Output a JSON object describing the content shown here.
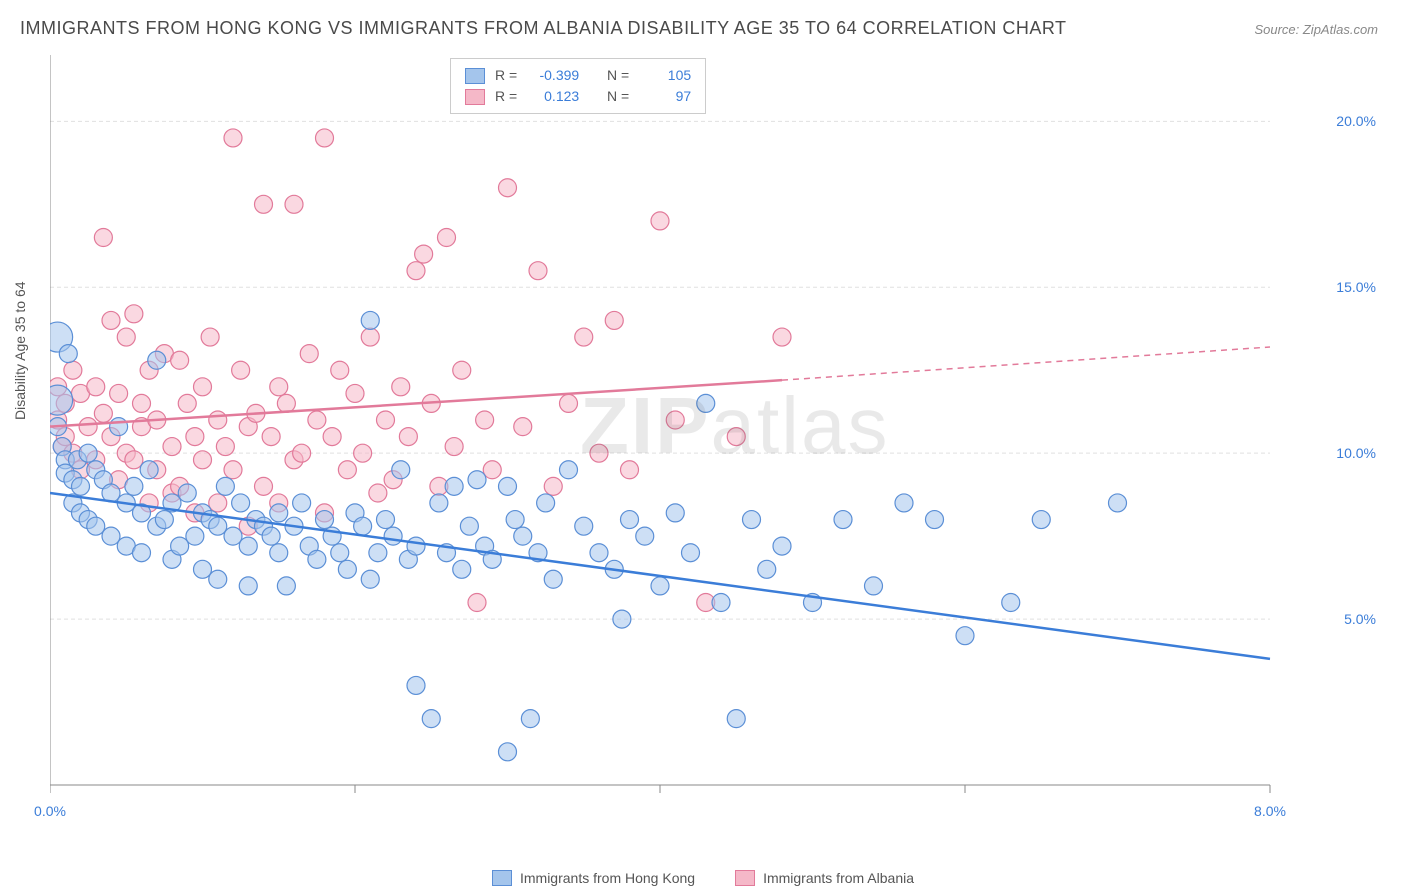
{
  "title": "IMMIGRANTS FROM HONG KONG VS IMMIGRANTS FROM ALBANIA DISABILITY AGE 35 TO 64 CORRELATION CHART",
  "source": "Source: ZipAtlas.com",
  "y_axis_label": "Disability Age 35 to 64",
  "watermark_bold": "ZIP",
  "watermark_light": "atlas",
  "chart": {
    "type": "scatter",
    "xlim": [
      0,
      8
    ],
    "ylim": [
      0,
      22
    ],
    "x_ticks": [
      0,
      2,
      4,
      6,
      8
    ],
    "x_tick_labels": {
      "0": "0.0%",
      "8": "8.0%"
    },
    "y_ticks": [
      5,
      10,
      15,
      20
    ],
    "y_tick_labels": {
      "5": "5.0%",
      "10": "10.0%",
      "15": "15.0%",
      "20": "20.0%"
    },
    "grid_color": "#e0e0e0",
    "axis_color": "#888888",
    "background_color": "#ffffff",
    "marker_radius": 9,
    "marker_radius_large": 15,
    "line_width": 2.5,
    "series": [
      {
        "name": "Immigrants from Hong Kong",
        "fill": "#a4c5ec",
        "stroke": "#5b8fd6",
        "line_color": "#3b7dd8",
        "R": "-0.399",
        "N": "105",
        "trend": {
          "x1": 0,
          "y1": 8.8,
          "x2": 8,
          "y2": 3.8,
          "dash_after": 8
        },
        "points": [
          [
            0.05,
            13.5,
            "L"
          ],
          [
            0.05,
            11.6,
            "L"
          ],
          [
            0.05,
            10.8
          ],
          [
            0.08,
            10.2
          ],
          [
            0.1,
            9.8
          ],
          [
            0.1,
            9.4
          ],
          [
            0.12,
            13.0
          ],
          [
            0.15,
            9.2
          ],
          [
            0.15,
            8.5
          ],
          [
            0.18,
            9.8
          ],
          [
            0.2,
            9.0
          ],
          [
            0.2,
            8.2
          ],
          [
            0.25,
            10.0
          ],
          [
            0.25,
            8.0
          ],
          [
            0.3,
            9.5
          ],
          [
            0.3,
            7.8
          ],
          [
            0.35,
            9.2
          ],
          [
            0.4,
            8.8
          ],
          [
            0.4,
            7.5
          ],
          [
            0.45,
            10.8
          ],
          [
            0.5,
            8.5
          ],
          [
            0.5,
            7.2
          ],
          [
            0.55,
            9.0
          ],
          [
            0.6,
            8.2
          ],
          [
            0.6,
            7.0
          ],
          [
            0.65,
            9.5
          ],
          [
            0.7,
            12.8
          ],
          [
            0.7,
            7.8
          ],
          [
            0.75,
            8.0
          ],
          [
            0.8,
            8.5
          ],
          [
            0.8,
            6.8
          ],
          [
            0.85,
            7.2
          ],
          [
            0.9,
            8.8
          ],
          [
            0.95,
            7.5
          ],
          [
            1.0,
            8.2
          ],
          [
            1.0,
            6.5
          ],
          [
            1.05,
            8.0
          ],
          [
            1.1,
            7.8
          ],
          [
            1.1,
            6.2
          ],
          [
            1.15,
            9.0
          ],
          [
            1.2,
            7.5
          ],
          [
            1.25,
            8.5
          ],
          [
            1.3,
            7.2
          ],
          [
            1.3,
            6.0
          ],
          [
            1.35,
            8.0
          ],
          [
            1.4,
            7.8
          ],
          [
            1.45,
            7.5
          ],
          [
            1.5,
            8.2
          ],
          [
            1.5,
            7.0
          ],
          [
            1.55,
            6.0
          ],
          [
            1.6,
            7.8
          ],
          [
            1.65,
            8.5
          ],
          [
            1.7,
            7.2
          ],
          [
            1.75,
            6.8
          ],
          [
            1.8,
            8.0
          ],
          [
            1.85,
            7.5
          ],
          [
            1.9,
            7.0
          ],
          [
            1.95,
            6.5
          ],
          [
            2.0,
            8.2
          ],
          [
            2.05,
            7.8
          ],
          [
            2.1,
            14.0
          ],
          [
            2.1,
            6.2
          ],
          [
            2.15,
            7.0
          ],
          [
            2.2,
            8.0
          ],
          [
            2.25,
            7.5
          ],
          [
            2.3,
            9.5
          ],
          [
            2.35,
            6.8
          ],
          [
            2.4,
            7.2
          ],
          [
            2.4,
            3.0
          ],
          [
            2.5,
            2.0
          ],
          [
            2.55,
            8.5
          ],
          [
            2.6,
            7.0
          ],
          [
            2.65,
            9.0
          ],
          [
            2.7,
            6.5
          ],
          [
            2.75,
            7.8
          ],
          [
            2.8,
            9.2
          ],
          [
            2.85,
            7.2
          ],
          [
            2.9,
            6.8
          ],
          [
            3.0,
            9.0
          ],
          [
            3.0,
            1.0
          ],
          [
            3.05,
            8.0
          ],
          [
            3.1,
            7.5
          ],
          [
            3.15,
            2.0
          ],
          [
            3.2,
            7.0
          ],
          [
            3.25,
            8.5
          ],
          [
            3.3,
            6.2
          ],
          [
            3.4,
            9.5
          ],
          [
            3.5,
            7.8
          ],
          [
            3.6,
            7.0
          ],
          [
            3.7,
            6.5
          ],
          [
            3.75,
            5.0
          ],
          [
            3.8,
            8.0
          ],
          [
            3.9,
            7.5
          ],
          [
            4.0,
            6.0
          ],
          [
            4.1,
            8.2
          ],
          [
            4.2,
            7.0
          ],
          [
            4.3,
            11.5
          ],
          [
            4.4,
            5.5
          ],
          [
            4.5,
            2.0
          ],
          [
            4.6,
            8.0
          ],
          [
            4.7,
            6.5
          ],
          [
            4.8,
            7.2
          ],
          [
            5.0,
            5.5
          ],
          [
            5.2,
            8.0
          ],
          [
            5.4,
            6.0
          ],
          [
            5.6,
            8.5
          ],
          [
            5.8,
            8.0
          ],
          [
            6.0,
            4.5
          ],
          [
            6.3,
            5.5
          ],
          [
            6.5,
            8.0
          ],
          [
            7.0,
            8.5
          ]
        ]
      },
      {
        "name": "Immigrants from Albania",
        "fill": "#f5b8c8",
        "stroke": "#e27a9a",
        "line_color": "#e27a9a",
        "R": "0.123",
        "N": "97",
        "trend": {
          "x1": 0,
          "y1": 10.8,
          "x2": 4.8,
          "y2": 12.2,
          "dash_after": 4.8,
          "x3": 8,
          "y3": 13.2
        },
        "points": [
          [
            0.05,
            12.0
          ],
          [
            0.05,
            11.0
          ],
          [
            0.08,
            10.2
          ],
          [
            0.1,
            11.5
          ],
          [
            0.1,
            10.5
          ],
          [
            0.15,
            12.5
          ],
          [
            0.15,
            10.0
          ],
          [
            0.2,
            11.8
          ],
          [
            0.2,
            9.5
          ],
          [
            0.25,
            10.8
          ],
          [
            0.3,
            12.0
          ],
          [
            0.3,
            9.8
          ],
          [
            0.35,
            11.2
          ],
          [
            0.35,
            16.5
          ],
          [
            0.4,
            10.5
          ],
          [
            0.4,
            14.0
          ],
          [
            0.45,
            11.8
          ],
          [
            0.45,
            9.2
          ],
          [
            0.5,
            13.5
          ],
          [
            0.5,
            10.0
          ],
          [
            0.55,
            14.2
          ],
          [
            0.55,
            9.8
          ],
          [
            0.6,
            11.5
          ],
          [
            0.6,
            10.8
          ],
          [
            0.65,
            12.5
          ],
          [
            0.65,
            8.5
          ],
          [
            0.7,
            11.0
          ],
          [
            0.7,
            9.5
          ],
          [
            0.75,
            13.0
          ],
          [
            0.8,
            10.2
          ],
          [
            0.8,
            8.8
          ],
          [
            0.85,
            12.8
          ],
          [
            0.85,
            9.0
          ],
          [
            0.9,
            11.5
          ],
          [
            0.95,
            10.5
          ],
          [
            0.95,
            8.2
          ],
          [
            1.0,
            12.0
          ],
          [
            1.0,
            9.8
          ],
          [
            1.05,
            13.5
          ],
          [
            1.1,
            11.0
          ],
          [
            1.1,
            8.5
          ],
          [
            1.15,
            10.2
          ],
          [
            1.2,
            19.5
          ],
          [
            1.2,
            9.5
          ],
          [
            1.25,
            12.5
          ],
          [
            1.3,
            10.8
          ],
          [
            1.3,
            7.8
          ],
          [
            1.35,
            11.2
          ],
          [
            1.4,
            17.5
          ],
          [
            1.4,
            9.0
          ],
          [
            1.45,
            10.5
          ],
          [
            1.5,
            12.0
          ],
          [
            1.5,
            8.5
          ],
          [
            1.55,
            11.5
          ],
          [
            1.6,
            17.5
          ],
          [
            1.6,
            9.8
          ],
          [
            1.65,
            10.0
          ],
          [
            1.7,
            13.0
          ],
          [
            1.75,
            11.0
          ],
          [
            1.8,
            19.5
          ],
          [
            1.8,
            8.2
          ],
          [
            1.85,
            10.5
          ],
          [
            1.9,
            12.5
          ],
          [
            1.95,
            9.5
          ],
          [
            2.0,
            11.8
          ],
          [
            2.05,
            10.0
          ],
          [
            2.1,
            13.5
          ],
          [
            2.15,
            8.8
          ],
          [
            2.2,
            11.0
          ],
          [
            2.25,
            9.2
          ],
          [
            2.3,
            12.0
          ],
          [
            2.35,
            10.5
          ],
          [
            2.4,
            15.5
          ],
          [
            2.45,
            16.0
          ],
          [
            2.5,
            11.5
          ],
          [
            2.55,
            9.0
          ],
          [
            2.6,
            16.5
          ],
          [
            2.65,
            10.2
          ],
          [
            2.7,
            12.5
          ],
          [
            2.8,
            5.5
          ],
          [
            2.85,
            11.0
          ],
          [
            2.9,
            9.5
          ],
          [
            3.0,
            18.0
          ],
          [
            3.1,
            10.8
          ],
          [
            3.2,
            15.5
          ],
          [
            3.3,
            9.0
          ],
          [
            3.4,
            11.5
          ],
          [
            3.5,
            13.5
          ],
          [
            3.6,
            10.0
          ],
          [
            3.7,
            14.0
          ],
          [
            3.8,
            9.5
          ],
          [
            4.0,
            17.0
          ],
          [
            4.1,
            11.0
          ],
          [
            4.3,
            5.5
          ],
          [
            4.5,
            10.5
          ],
          [
            4.8,
            13.5
          ]
        ]
      }
    ]
  },
  "legend": {
    "series1_label": "Immigrants from Hong Kong",
    "series2_label": "Immigrants from Albania"
  },
  "stats": {
    "r_label": "R =",
    "n_label": "N ="
  }
}
